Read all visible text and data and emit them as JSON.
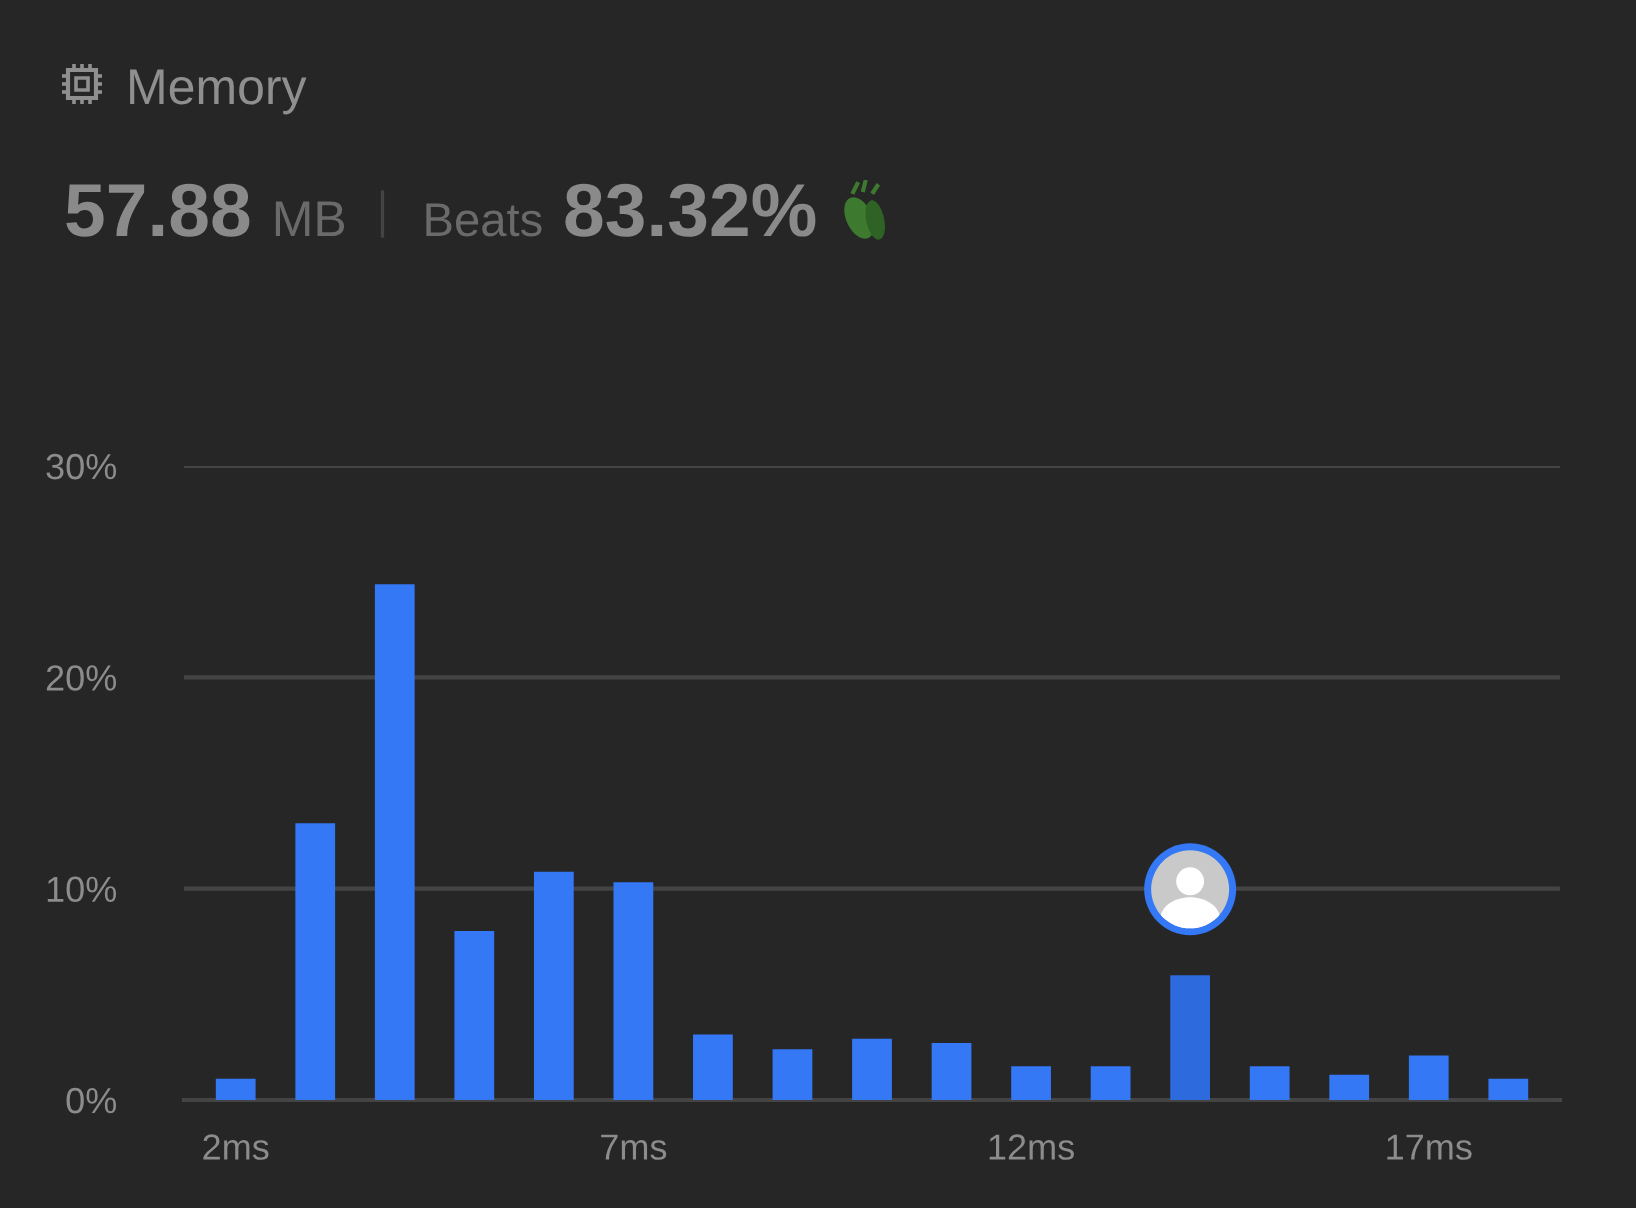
{
  "chart_data": {
    "type": "bar",
    "title": "Memory",
    "annotations": [
      "57.88",
      "MB",
      "Beats",
      "83.32%"
    ],
    "categories": [
      "2ms",
      null,
      null,
      null,
      null,
      "7ms",
      null,
      null,
      null,
      null,
      "12ms",
      null,
      null,
      null,
      null,
      "17ms",
      null
    ],
    "values": [
      1.0,
      13.1,
      24.4,
      8.0,
      10.8,
      10.3,
      3.1,
      2.4,
      2.9,
      2.7,
      1.6,
      1.6,
      5.9,
      1.6,
      1.2,
      2.1,
      1.0
    ],
    "colors": [
      "#3478f6",
      "#3478f6",
      "#3478f6",
      "#3478f6",
      "#3478f6",
      "#3478f6",
      "#3478f6",
      "#3478f6",
      "#3478f6",
      "#3478f6",
      "#3478f6",
      "#3478f6",
      "#2d6ade",
      "#3478f6",
      "#3478f6",
      "#3478f6",
      "#3478f6"
    ],
    "ylim": [
      0,
      30
    ],
    "yticks": [
      {
        "value": 0,
        "label": "0%"
      },
      {
        "value": 10,
        "label": "10%"
      },
      {
        "value": 20,
        "label": "20%"
      },
      {
        "value": 30,
        "label": "30%"
      }
    ],
    "grid": "y"
  }
}
